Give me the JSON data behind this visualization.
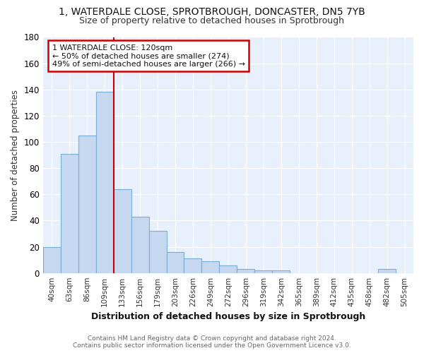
{
  "title_line1": "1, WATERDALE CLOSE, SPROTBROUGH, DONCASTER, DN5 7YB",
  "title_line2": "Size of property relative to detached houses in Sprotbrough",
  "xlabel": "Distribution of detached houses by size in Sprotbrough",
  "ylabel": "Number of detached properties",
  "bar_labels": [
    "40sqm",
    "63sqm",
    "86sqm",
    "109sqm",
    "133sqm",
    "156sqm",
    "179sqm",
    "203sqm",
    "226sqm",
    "249sqm",
    "272sqm",
    "296sqm",
    "319sqm",
    "342sqm",
    "365sqm",
    "389sqm",
    "412sqm",
    "435sqm",
    "458sqm",
    "482sqm",
    "505sqm"
  ],
  "bar_values": [
    20,
    91,
    105,
    138,
    64,
    43,
    32,
    16,
    11,
    9,
    6,
    3,
    2,
    2,
    0,
    0,
    0,
    0,
    0,
    3,
    0
  ],
  "bar_color": "#c5d8f0",
  "bar_edge_color": "#7aadd4",
  "background_color": "#e8f0fb",
  "grid_color": "#ffffff",
  "annotation_line1": "1 WATERDALE CLOSE: 120sqm",
  "annotation_line2": "← 50% of detached houses are smaller (274)",
  "annotation_line3": "49% of semi-detached houses are larger (266) →",
  "annotation_box_color": "#ffffff",
  "annotation_box_edge": "#cc0000",
  "red_line_color": "#cc0000",
  "red_line_x": 3.5,
  "ylim": [
    0,
    180
  ],
  "yticks": [
    0,
    20,
    40,
    60,
    80,
    100,
    120,
    140,
    160,
    180
  ],
  "footnote1": "Contains HM Land Registry data © Crown copyright and database right 2024.",
  "footnote2": "Contains public sector information licensed under the Open Government Licence v3.0."
}
